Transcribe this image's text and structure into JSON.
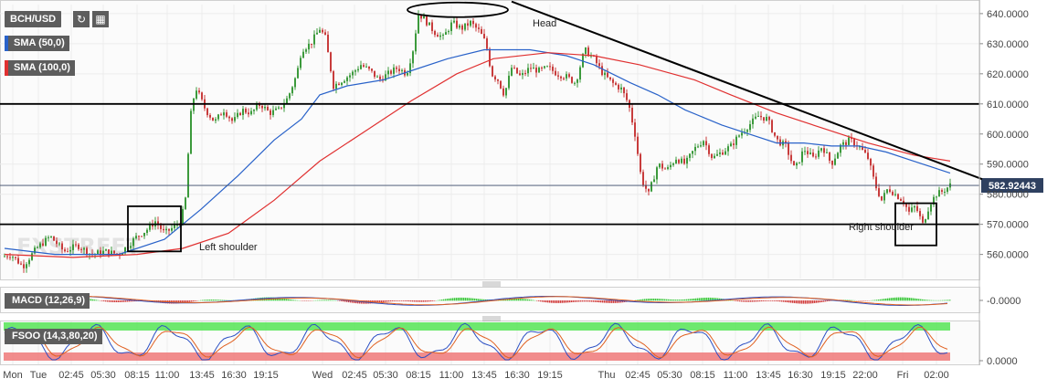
{
  "toolbar": {
    "symbol": "BCH/USD",
    "indicators": [
      {
        "label": "SMA (50,0)",
        "color": "#2962c9"
      },
      {
        "label": "SMA (100,0)",
        "color": "#e03030"
      }
    ],
    "macd_label": "MACD (12,26,9)",
    "fsoo_label": "FSOO (14,3,80,20)"
  },
  "price_tag": "582.92443",
  "macd_tick": "-0.0000",
  "fsoo_tick": "0.0000",
  "annotations": {
    "head": "Head",
    "left_shoulder": "Left shoulder",
    "right_shoulder": "Right shoulder"
  },
  "chart_data": {
    "type": "candlestick",
    "title": "",
    "xlabel": "",
    "ylabel": "",
    "ylim": [
      552,
      643
    ],
    "y_ticks": [
      560,
      570,
      580,
      590,
      600,
      610,
      620,
      630,
      640
    ],
    "y_tick_labels": [
      "560.0000",
      "570.0000",
      "580.0000",
      "590.0000",
      "600.0000",
      "610.0000",
      "620.0000",
      "630.0000",
      "640.0000"
    ],
    "x_tick_labels": [
      "Mon",
      "Tue",
      "02:45",
      "05:30",
      "08:15",
      "11:00",
      "13:45",
      "16:30",
      "19:15",
      "Wed",
      "02:45",
      "05:30",
      "08:15",
      "11:00",
      "13:45",
      "16:30",
      "19:15",
      "Thu",
      "02:45",
      "05:30",
      "08:15",
      "11:00",
      "13:45",
      "16:30",
      "19:15",
      "22:00",
      "Fri",
      "02:00"
    ],
    "last_price": 582.92443,
    "horizontal_levels": [
      610,
      570
    ],
    "price_path": [
      [
        0,
        559
      ],
      [
        12,
        560
      ],
      [
        25,
        556
      ],
      [
        40,
        562
      ],
      [
        55,
        566
      ],
      [
        70,
        561
      ],
      [
        85,
        563
      ],
      [
        100,
        560
      ],
      [
        115,
        561
      ],
      [
        130,
        560
      ],
      [
        140,
        563
      ],
      [
        150,
        566
      ],
      [
        160,
        568
      ],
      [
        170,
        571
      ],
      [
        180,
        567
      ],
      [
        190,
        569
      ],
      [
        198,
        571
      ],
      [
        204,
        580
      ],
      [
        207,
        600
      ],
      [
        210,
        610
      ],
      [
        215,
        615
      ],
      [
        225,
        608
      ],
      [
        235,
        604
      ],
      [
        245,
        608
      ],
      [
        255,
        604
      ],
      [
        265,
        608
      ],
      [
        275,
        607
      ],
      [
        285,
        610
      ],
      [
        295,
        607
      ],
      [
        305,
        608
      ],
      [
        315,
        612
      ],
      [
        325,
        620
      ],
      [
        330,
        628
      ],
      [
        340,
        630
      ],
      [
        350,
        635
      ],
      [
        356,
        632
      ],
      [
        360,
        625
      ],
      [
        365,
        616
      ],
      [
        375,
        618
      ],
      [
        385,
        620
      ],
      [
        395,
        623
      ],
      [
        405,
        621
      ],
      [
        415,
        618
      ],
      [
        425,
        620
      ],
      [
        435,
        622
      ],
      [
        445,
        620
      ],
      [
        452,
        628
      ],
      [
        458,
        640
      ],
      [
        465,
        638
      ],
      [
        475,
        634
      ],
      [
        485,
        632
      ],
      [
        495,
        637
      ],
      [
        505,
        635
      ],
      [
        515,
        637
      ],
      [
        525,
        634
      ],
      [
        532,
        630
      ],
      [
        538,
        620
      ],
      [
        545,
        618
      ],
      [
        552,
        613
      ],
      [
        560,
        622
      ],
      [
        570,
        619
      ],
      [
        580,
        622
      ],
      [
        590,
        621
      ],
      [
        600,
        622
      ],
      [
        610,
        620
      ],
      [
        620,
        619
      ],
      [
        630,
        617
      ],
      [
        640,
        628
      ],
      [
        650,
        625
      ],
      [
        660,
        620
      ],
      [
        670,
        617
      ],
      [
        680,
        615
      ],
      [
        688,
        610
      ],
      [
        695,
        600
      ],
      [
        702,
        585
      ],
      [
        710,
        580
      ],
      [
        720,
        590
      ],
      [
        730,
        588
      ],
      [
        740,
        592
      ],
      [
        750,
        590
      ],
      [
        760,
        595
      ],
      [
        770,
        598
      ],
      [
        780,
        592
      ],
      [
        790,
        594
      ],
      [
        800,
        596
      ],
      [
        810,
        600
      ],
      [
        820,
        603
      ],
      [
        830,
        606
      ],
      [
        840,
        605
      ],
      [
        850,
        598
      ],
      [
        860,
        596
      ],
      [
        870,
        588
      ],
      [
        880,
        595
      ],
      [
        890,
        592
      ],
      [
        900,
        596
      ],
      [
        910,
        590
      ],
      [
        920,
        596
      ],
      [
        930,
        598
      ],
      [
        940,
        596
      ],
      [
        950,
        592
      ],
      [
        958,
        583
      ],
      [
        965,
        578
      ],
      [
        972,
        582
      ],
      [
        980,
        580
      ],
      [
        988,
        578
      ],
      [
        995,
        574
      ],
      [
        1002,
        576
      ],
      [
        1010,
        570
      ],
      [
        1018,
        577
      ],
      [
        1025,
        580
      ],
      [
        1032,
        581
      ],
      [
        1040,
        583
      ]
    ],
    "series": [
      {
        "name": "SMA (50,0)",
        "color": "#2962c9",
        "points": [
          [
            5,
            562
          ],
          [
            60,
            560
          ],
          [
            130,
            560
          ],
          [
            180,
            565
          ],
          [
            220,
            575
          ],
          [
            260,
            586
          ],
          [
            300,
            598
          ],
          [
            330,
            605
          ],
          [
            350,
            613
          ],
          [
            380,
            616
          ],
          [
            420,
            618
          ],
          [
            450,
            621
          ],
          [
            490,
            625
          ],
          [
            530,
            628
          ],
          [
            580,
            628
          ],
          [
            620,
            626
          ],
          [
            650,
            623
          ],
          [
            690,
            617
          ],
          [
            720,
            613
          ],
          [
            750,
            608
          ],
          [
            790,
            603
          ],
          [
            820,
            600
          ],
          [
            850,
            597
          ],
          [
            880,
            597
          ],
          [
            910,
            596
          ],
          [
            940,
            596
          ],
          [
            970,
            594
          ],
          [
            1000,
            591
          ],
          [
            1040,
            587
          ]
        ]
      },
      {
        "name": "SMA (100,0)",
        "color": "#e03030",
        "points": [
          [
            5,
            560
          ],
          [
            80,
            559
          ],
          [
            150,
            560
          ],
          [
            200,
            562
          ],
          [
            250,
            567
          ],
          [
            300,
            578
          ],
          [
            350,
            591
          ],
          [
            400,
            601
          ],
          [
            450,
            611
          ],
          [
            500,
            620
          ],
          [
            540,
            625
          ],
          [
            600,
            627
          ],
          [
            650,
            626
          ],
          [
            700,
            623
          ],
          [
            760,
            618
          ],
          [
            800,
            613
          ],
          [
            850,
            607
          ],
          [
            900,
            602
          ],
          [
            950,
            597
          ],
          [
            1000,
            593
          ],
          [
            1040,
            591
          ]
        ]
      }
    ],
    "trendline": {
      "from": [
        560,
        644
      ],
      "to": [
        1075,
        585
      ]
    },
    "patterns": [
      {
        "label": "Left shoulder",
        "x_range": [
          140,
          198
        ],
        "y_range": [
          561,
          576
        ]
      },
      {
        "label": "Head",
        "x_range": [
          446,
          556
        ],
        "y_range": [
          639.5,
          643
        ]
      },
      {
        "label": "Right shoulder",
        "x_range": [
          980,
          1025
        ],
        "y_range": [
          563,
          577
        ]
      }
    ],
    "macd": {
      "ylim": [
        -1,
        1
      ],
      "tick": "-0.0000"
    },
    "fsoo": {
      "ylim": [
        0,
        100
      ],
      "upper_band": 80,
      "lower_band": 20,
      "tick": "0.0000"
    }
  }
}
